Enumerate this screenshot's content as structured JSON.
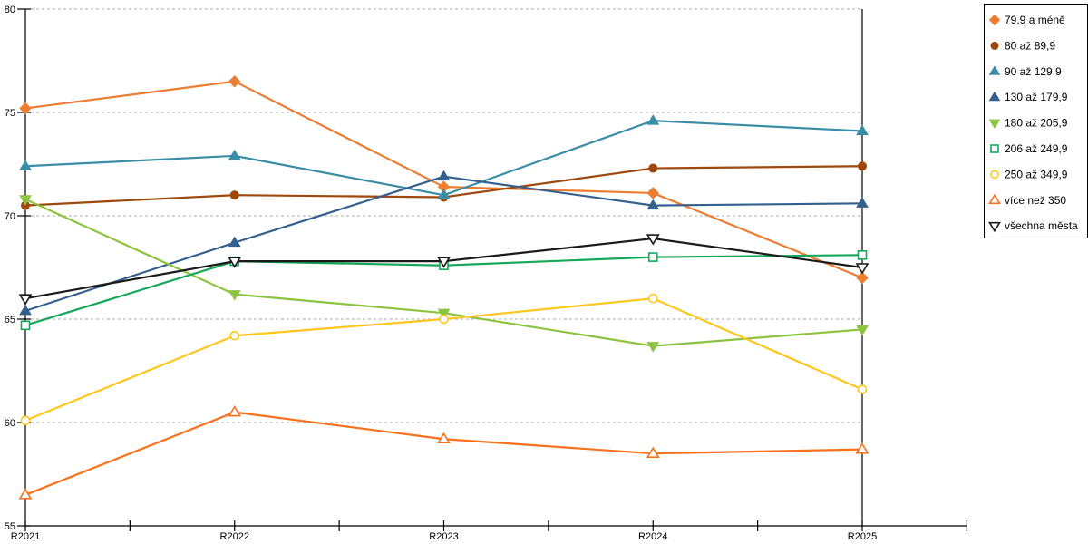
{
  "chart_data": {
    "type": "line",
    "title": "",
    "xlabel": "",
    "ylabel": "",
    "categories": [
      "R2021",
      "R2022",
      "R2023",
      "R2024",
      "R2025"
    ],
    "y_ticks": [
      55,
      60,
      65,
      70,
      75,
      80
    ],
    "ylim": [
      55,
      80
    ],
    "grid": "horizontal dashed gridlines at major y ticks",
    "legend_position": "top-right, bordered box",
    "series": [
      {
        "name": "79,9 a méně",
        "color": "#ED7D31",
        "marker": "diamond",
        "marker_fill": "filled",
        "values": [
          75.2,
          76.5,
          71.4,
          71.1,
          67.0
        ]
      },
      {
        "name": "80 až 89,9",
        "color": "#9E480E",
        "marker": "circle",
        "marker_fill": "filled",
        "values": [
          70.5,
          71.0,
          70.9,
          72.3,
          72.4
        ]
      },
      {
        "name": "90 až 129,9",
        "color": "#3A8DA6",
        "marker": "triangle-up",
        "marker_fill": "filled",
        "values": [
          72.4,
          72.9,
          71.0,
          74.6,
          74.1
        ]
      },
      {
        "name": "130 až 179,9",
        "color": "#35608D",
        "marker": "triangle-up",
        "marker_fill": "filled",
        "values": [
          65.4,
          68.7,
          71.9,
          70.5,
          70.6
        ]
      },
      {
        "name": "180 až 205,9",
        "color": "#8CC440",
        "marker": "triangle-down",
        "marker_fill": "filled",
        "values": [
          70.8,
          66.2,
          65.3,
          63.7,
          64.5
        ]
      },
      {
        "name": "206 až 249,9",
        "color": "#17A85B",
        "marker": "square",
        "marker_fill": "hollow",
        "values": [
          64.7,
          67.8,
          67.6,
          68.0,
          68.1
        ]
      },
      {
        "name": "250 až 349,9",
        "color": "#FFC61E",
        "marker": "circle",
        "marker_fill": "hollow",
        "values": [
          60.1,
          64.2,
          65.0,
          66.0,
          61.6
        ]
      },
      {
        "name": "více než 350",
        "color": "#F9711C",
        "marker": "triangle-up",
        "marker_fill": "hollow",
        "values": [
          56.5,
          60.5,
          59.2,
          58.5,
          58.7
        ]
      },
      {
        "name": "všechna města",
        "color": "#1A1A1A",
        "marker": "triangle-down",
        "marker_fill": "hollow",
        "values": [
          66.0,
          67.8,
          67.8,
          68.9,
          67.5
        ]
      }
    ],
    "colors": {
      "axis": "#000000",
      "gridline": "#ABABAB",
      "background": "#FFFFFF",
      "legend_border": "#000000"
    }
  }
}
